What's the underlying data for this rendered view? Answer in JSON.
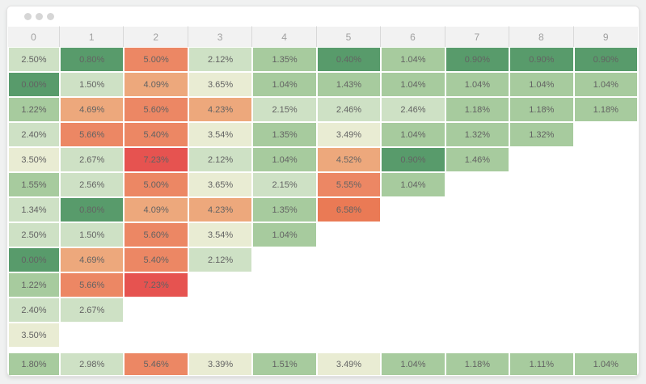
{
  "window": {
    "controls": [
      "window-dot",
      "window-dot",
      "window-dot"
    ]
  },
  "ui": {
    "page_bg": "#f0f1f1",
    "window_bg": "#ffffff",
    "dot": "#d6d6d6",
    "header_bg": "#f2f2f2",
    "header_text": "#a0a0a0",
    "separator": "#d8d8d8",
    "cell_text": "#636363"
  },
  "chart_data": {
    "type": "heatmap",
    "title": "",
    "columns": [
      "0",
      "1",
      "2",
      "3",
      "4",
      "5",
      "6",
      "7",
      "8",
      "9"
    ],
    "palette": {
      "darkGreen": "#589b6b",
      "green": "#a7cb9e",
      "lightGreen": "#cee1c5",
      "pale": "#e9ecd3",
      "lightOrange": "#eda87c",
      "orange": "#ec8764",
      "deepOrange": "#ea7a55",
      "red": "#e65350"
    },
    "cells": [
      [
        {
          "v": "2.50%",
          "c": "lightGreen"
        },
        {
          "v": "0.80%",
          "c": "darkGreen"
        },
        {
          "v": "5.00%",
          "c": "orange"
        },
        {
          "v": "2.12%",
          "c": "lightGreen"
        },
        {
          "v": "1.35%",
          "c": "green"
        },
        {
          "v": "0.40%",
          "c": "darkGreen"
        },
        {
          "v": "1.04%",
          "c": "green"
        },
        {
          "v": "0.90%",
          "c": "darkGreen"
        },
        {
          "v": "0.90%",
          "c": "darkGreen"
        },
        {
          "v": "0.90%",
          "c": "darkGreen"
        }
      ],
      [
        {
          "v": "0.00%",
          "c": "darkGreen"
        },
        {
          "v": "1.50%",
          "c": "lightGreen"
        },
        {
          "v": "4.09%",
          "c": "lightOrange"
        },
        {
          "v": "3.65%",
          "c": "pale"
        },
        {
          "v": "1.04%",
          "c": "green"
        },
        {
          "v": "1.43%",
          "c": "green"
        },
        {
          "v": "1.04%",
          "c": "green"
        },
        {
          "v": "1.04%",
          "c": "green"
        },
        {
          "v": "1.04%",
          "c": "green"
        },
        {
          "v": "1.04%",
          "c": "green"
        }
      ],
      [
        {
          "v": "1.22%",
          "c": "green"
        },
        {
          "v": "4.69%",
          "c": "lightOrange"
        },
        {
          "v": "5.60%",
          "c": "orange"
        },
        {
          "v": "4.23%",
          "c": "lightOrange"
        },
        {
          "v": "2.15%",
          "c": "lightGreen"
        },
        {
          "v": "2.46%",
          "c": "lightGreen"
        },
        {
          "v": "2.46%",
          "c": "lightGreen"
        },
        {
          "v": "1.18%",
          "c": "green"
        },
        {
          "v": "1.18%",
          "c": "green"
        },
        {
          "v": "1.18%",
          "c": "green"
        }
      ],
      [
        {
          "v": "2.40%",
          "c": "lightGreen"
        },
        {
          "v": "5.66%",
          "c": "orange"
        },
        {
          "v": "5.40%",
          "c": "orange"
        },
        {
          "v": "3.54%",
          "c": "pale"
        },
        {
          "v": "1.35%",
          "c": "green"
        },
        {
          "v": "3.49%",
          "c": "pale"
        },
        {
          "v": "1.04%",
          "c": "green"
        },
        {
          "v": "1.32%",
          "c": "green"
        },
        {
          "v": "1.32%",
          "c": "green"
        },
        null
      ],
      [
        {
          "v": "3.50%",
          "c": "pale"
        },
        {
          "v": "2.67%",
          "c": "lightGreen"
        },
        {
          "v": "7.23%",
          "c": "red"
        },
        {
          "v": "2.12%",
          "c": "lightGreen"
        },
        {
          "v": "1.04%",
          "c": "green"
        },
        {
          "v": "4.52%",
          "c": "lightOrange"
        },
        {
          "v": "0.90%",
          "c": "darkGreen"
        },
        {
          "v": "1.46%",
          "c": "green"
        },
        null,
        null
      ],
      [
        {
          "v": "1.55%",
          "c": "green"
        },
        {
          "v": "2.56%",
          "c": "lightGreen"
        },
        {
          "v": "5.00%",
          "c": "orange"
        },
        {
          "v": "3.65%",
          "c": "pale"
        },
        {
          "v": "2.15%",
          "c": "lightGreen"
        },
        {
          "v": "5.55%",
          "c": "orange"
        },
        {
          "v": "1.04%",
          "c": "green"
        },
        null,
        null,
        null
      ],
      [
        {
          "v": "1.34%",
          "c": "lightGreen"
        },
        {
          "v": "0.80%",
          "c": "darkGreen"
        },
        {
          "v": "4.09%",
          "c": "lightOrange"
        },
        {
          "v": "4.23%",
          "c": "lightOrange"
        },
        {
          "v": "1.35%",
          "c": "green"
        },
        {
          "v": "6.58%",
          "c": "deepOrange"
        },
        null,
        null,
        null,
        null
      ],
      [
        {
          "v": "2.50%",
          "c": "lightGreen"
        },
        {
          "v": "1.50%",
          "c": "lightGreen"
        },
        {
          "v": "5.60%",
          "c": "orange"
        },
        {
          "v": "3.54%",
          "c": "pale"
        },
        {
          "v": "1.04%",
          "c": "green"
        },
        null,
        null,
        null,
        null,
        null
      ],
      [
        {
          "v": "0.00%",
          "c": "darkGreen"
        },
        {
          "v": "4.69%",
          "c": "lightOrange"
        },
        {
          "v": "5.40%",
          "c": "orange"
        },
        {
          "v": "2.12%",
          "c": "lightGreen"
        },
        null,
        null,
        null,
        null,
        null,
        null
      ],
      [
        {
          "v": "1.22%",
          "c": "green"
        },
        {
          "v": "5.66%",
          "c": "orange"
        },
        {
          "v": "7.23%",
          "c": "red"
        },
        null,
        null,
        null,
        null,
        null,
        null,
        null
      ],
      [
        {
          "v": "2.40%",
          "c": "lightGreen"
        },
        {
          "v": "2.67%",
          "c": "lightGreen"
        },
        null,
        null,
        null,
        null,
        null,
        null,
        null,
        null
      ],
      [
        {
          "v": "3.50%",
          "c": "pale"
        },
        null,
        null,
        null,
        null,
        null,
        null,
        null,
        null,
        null
      ]
    ],
    "summary": [
      {
        "v": "1.80%",
        "c": "green"
      },
      {
        "v": "2.98%",
        "c": "lightGreen"
      },
      {
        "v": "5.46%",
        "c": "orange"
      },
      {
        "v": "3.39%",
        "c": "pale"
      },
      {
        "v": "1.51%",
        "c": "green"
      },
      {
        "v": "3.49%",
        "c": "pale"
      },
      {
        "v": "1.04%",
        "c": "green"
      },
      {
        "v": "1.18%",
        "c": "green"
      },
      {
        "v": "1.11%",
        "c": "green"
      },
      {
        "v": "1.04%",
        "c": "green"
      }
    ]
  }
}
